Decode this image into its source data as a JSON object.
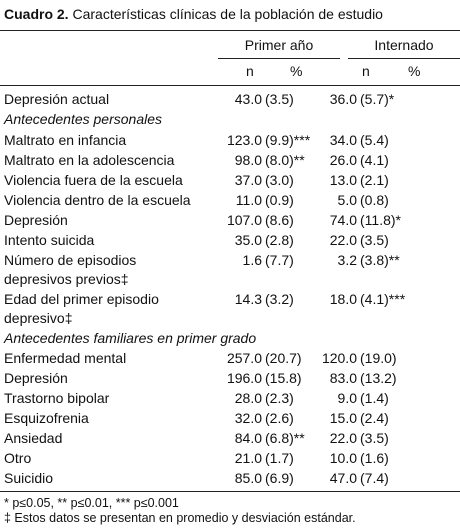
{
  "title": {
    "label": "Cuadro 2.",
    "text": "Características clínicas de la población de estudio"
  },
  "header": {
    "groups": [
      "Primer año",
      "Internado"
    ],
    "columns": [
      "n",
      "%",
      "n",
      "%"
    ]
  },
  "table": {
    "groups": [
      {
        "rows": [
          {
            "label": "Depresión actual",
            "n1": "43.0",
            "p1": "(3.5)",
            "n2": "36.0",
            "p2": "(5.7)",
            "s2": "*"
          }
        ]
      },
      {
        "heading": "Antecedentes personales",
        "rows": [
          {
            "label": "Maltrato en infancia",
            "n1": "123.0",
            "p1": "(9.9)",
            "s1": "***",
            "n2": "34.0",
            "p2": "(5.4)"
          },
          {
            "label": "Maltrato en la adolescencia",
            "n1": "98.0",
            "p1": "(8.0)",
            "s1": "**",
            "n2": "26.0",
            "p2": "(4.1)"
          },
          {
            "label": "Violencia fuera de la escuela",
            "n1": "37.0",
            "p1": "(3.0)",
            "n2": "13.0",
            "p2": "(2.1)"
          },
          {
            "label": "Violencia dentro de la escuela",
            "n1": "11.0",
            "p1": "(0.9)",
            "n2": "5.0",
            "p2": "(0.8)"
          },
          {
            "label": "Depresión",
            "n1": "107.0",
            "p1": "(8.6)",
            "n2": "74.0",
            "p2": "(11.8)",
            "s2": "*"
          },
          {
            "label": "Intento suicida",
            "n1": "35.0",
            "p1": "(2.8)",
            "n2": "22.0",
            "p2": "(3.5)"
          },
          {
            "label": "Número de episodios depresivos previos‡",
            "n1": "1.6",
            "p1": "(7.7)",
            "n2": "3.2",
            "p2": "(3.8)",
            "s2": "**"
          },
          {
            "label": "Edad del primer episodio depresivo‡",
            "n1": "14.3",
            "p1": "(3.2)",
            "n2": "18.0",
            "p2": "(4.1)",
            "s2": "***"
          }
        ]
      },
      {
        "heading": "Antecedentes familiares en primer grado",
        "rows": [
          {
            "label": "Enfermedad mental",
            "n1": "257.0",
            "p1": "(20.7)",
            "n2": "120.0",
            "p2": "(19.0)"
          },
          {
            "label": "Depresión",
            "n1": "196.0",
            "p1": "(15.8)",
            "n2": "83.0",
            "p2": "(13.2)"
          },
          {
            "label": "Trastorno bipolar",
            "n1": "28.0",
            "p1": "(2.3)",
            "n2": "9.0",
            "p2": "(1.4)"
          },
          {
            "label": "Esquizofrenia",
            "n1": "32.0",
            "p1": "(2.6)",
            "n2": "15.0",
            "p2": "(2.4)"
          },
          {
            "label": "Ansiedad",
            "n1": "84.0",
            "p1": "(6.8)",
            "s1": "**",
            "n2": "22.0",
            "p2": "(3.5)"
          },
          {
            "label": "Otro",
            "n1": "21.0",
            "p1": "(1.7)",
            "n2": "10.0",
            "p2": "(1.6)"
          },
          {
            "label": "Suicidio",
            "n1": "85.0",
            "p1": "(6.9)",
            "n2": "47.0",
            "p2": "(7.4)"
          }
        ]
      }
    ]
  },
  "footnotes": [
    "* p≤0.05, ** p≤0.01, *** p≤0.001",
    "‡ Estos datos se presentan en promedio y desviación estándar."
  ]
}
